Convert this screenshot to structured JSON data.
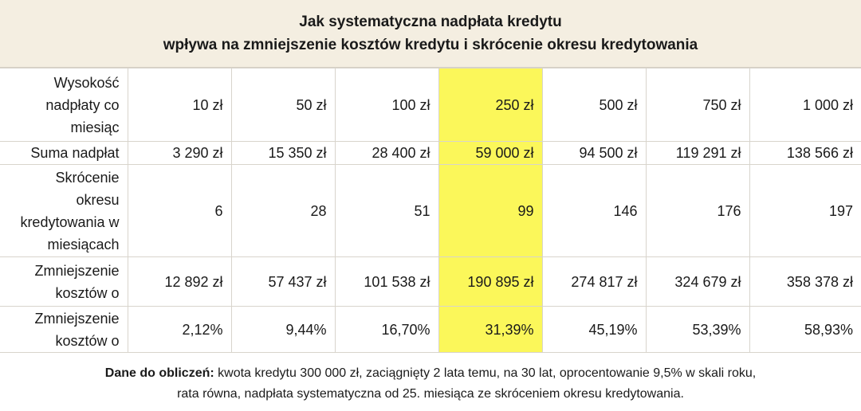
{
  "chart_data": {
    "type": "table",
    "title": [
      "Jak systematyczna nadpłata kredytu",
      "wpływa na zmniejszenie kosztów kredytu i skrócenie okresu kredytowania"
    ],
    "highlight_column_index": 3,
    "highlight_color": "#fbf75a",
    "header_background": "#f4eee1",
    "rows": [
      {
        "label": [
          "Wysokość",
          "nadpłaty co",
          "miesiąc"
        ],
        "values": [
          "10 zł",
          "50 zł",
          "100 zł",
          "250 zł",
          "500 zł",
          "750 zł",
          "1 000 zł"
        ]
      },
      {
        "label": [
          "Suma nadpłat"
        ],
        "values": [
          "3 290 zł",
          "15 350 zł",
          "28 400 zł",
          "59 000 zł",
          "94 500 zł",
          "119 291 zł",
          "138 566 zł"
        ]
      },
      {
        "label": [
          "Skrócenie",
          "okresu",
          "kredytowania w",
          "miesiącach"
        ],
        "values": [
          "6",
          "28",
          "51",
          "99",
          "146",
          "176",
          "197"
        ]
      },
      {
        "label": [
          "Zmniejszenie",
          "kosztów o"
        ],
        "values": [
          "12 892 zł",
          "57 437 zł",
          "101 538 zł",
          "190 895 zł",
          "274 817 zł",
          "324 679 zł",
          "358 378 zł"
        ]
      },
      {
        "label": [
          "Zmniejszenie",
          "kosztów o"
        ],
        "values": [
          "2,12%",
          "9,44%",
          "16,70%",
          "31,39%",
          "45,19%",
          "53,39%",
          "58,93%"
        ]
      }
    ],
    "footer": {
      "bold_lead": "Dane do obliczeń:",
      "line1_rest": " kwota kredytu 300 000 zł, zaciągnięty 2 lata temu, na 30 lat, oprocentowanie 9,5% w skali roku,",
      "line2": "rata równa, nadpłata systematyczna od 25. miesiąca ze skróceniem okresu kredytowania."
    }
  }
}
